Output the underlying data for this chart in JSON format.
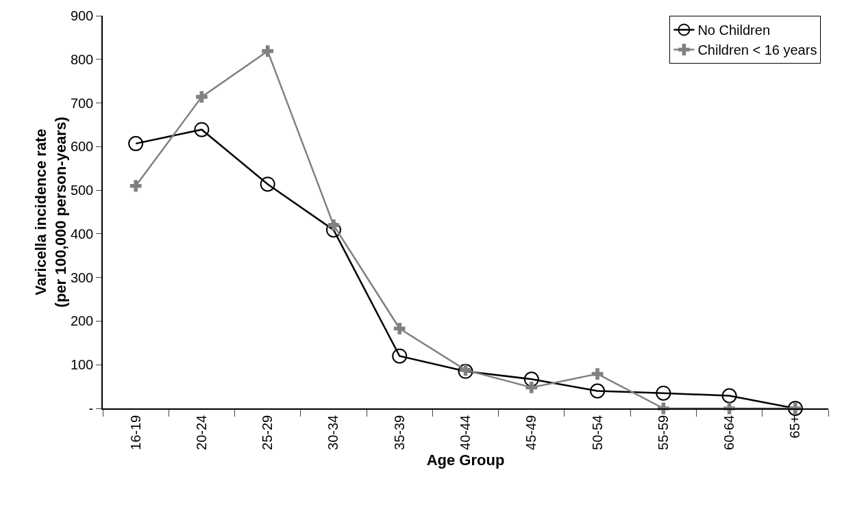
{
  "chart_data": {
    "type": "line",
    "xlabel": "Age Group",
    "ylabel": "Varicella incidence rate\n(per 100,000 person-years)",
    "categories": [
      "16-19",
      "20-24",
      "25-29",
      "30-34",
      "35-39",
      "40-44",
      "45-49",
      "50-54",
      "55-59",
      "60-64",
      "65+"
    ],
    "series": [
      {
        "name": "No Children",
        "color": "#000000",
        "marker": "circle",
        "values": [
          607,
          639,
          514,
          409,
          120,
          85,
          67,
          40,
          35,
          29,
          0
        ]
      },
      {
        "name": "Children < 16 years",
        "color": "#808080",
        "marker": "cross",
        "values": [
          510,
          714,
          819,
          420,
          183,
          88,
          48,
          79,
          0,
          0,
          0
        ]
      }
    ],
    "ylim": [
      0,
      900
    ],
    "yticks": [
      {
        "value": 0,
        "label": "-"
      },
      100,
      200,
      300,
      400,
      500,
      600,
      700,
      800,
      900
    ],
    "grid": false,
    "legend": "top right",
    "line_style": "solid"
  }
}
